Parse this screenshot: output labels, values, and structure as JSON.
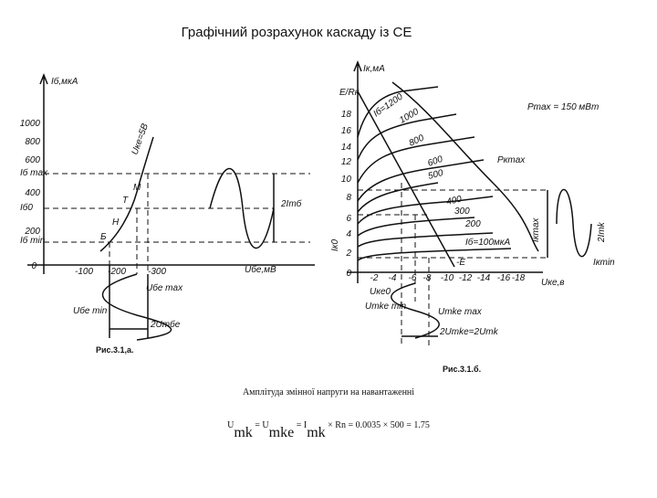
{
  "title": "Графічний розрахунок каскаду із СЕ",
  "left_figure": {
    "y_axis_label": "Iб,мкА",
    "x_axis_label": "Uбе,мВ",
    "y_ticks": [
      "1000",
      "800",
      "600",
      "400",
      "200",
      "0"
    ],
    "x_ticks": [
      "-100",
      "-200",
      "-300"
    ],
    "levels": [
      "Iб max",
      "Iб0",
      "Iб min"
    ],
    "curve_label": "Uке=5В",
    "points": [
      "Б",
      "Н",
      "Т",
      "М"
    ],
    "amplitude_label": "2Imб",
    "input_labels": [
      "Uбе max",
      "Uбе min",
      "2Umбе"
    ],
    "caption": "Рис.3.1,а."
  },
  "right_figure": {
    "y_axis_label": "Iк,мА",
    "source_label": "E/Rк",
    "y_ticks": [
      "18",
      "16",
      "14",
      "12",
      "10",
      "8",
      "6",
      "4",
      "2",
      "0"
    ],
    "x_ticks": [
      "-2",
      "-4",
      "-6",
      "-8",
      "-10",
      "-12",
      "-14",
      "-16",
      "-18"
    ],
    "x_axis_label": "Uке,в",
    "curve_labels": [
      "Iб=1200",
      "1000",
      "800",
      "600",
      "500",
      "400",
      "300",
      "200",
      "Iб=100мкА"
    ],
    "power_label": "Pmax = 150 мВт",
    "power_curve": "Pкmax",
    "load_label": "-E",
    "output_labels": [
      "Iк0",
      "Uкe0",
      "Umke min",
      "Umke max",
      "2Umke=2Umk",
      "2Imk",
      "Iкmax",
      "Iкmin"
    ],
    "caption": "Рис.3.1.б."
  },
  "subtitle": "Амплітуда змінної напруги на навантаженні",
  "formula": [
    "U",
    "mk",
    " = U",
    "mke",
    " = I",
    "mk",
    " × Rn = 0.0035 × 500 = 1.75"
  ]
}
